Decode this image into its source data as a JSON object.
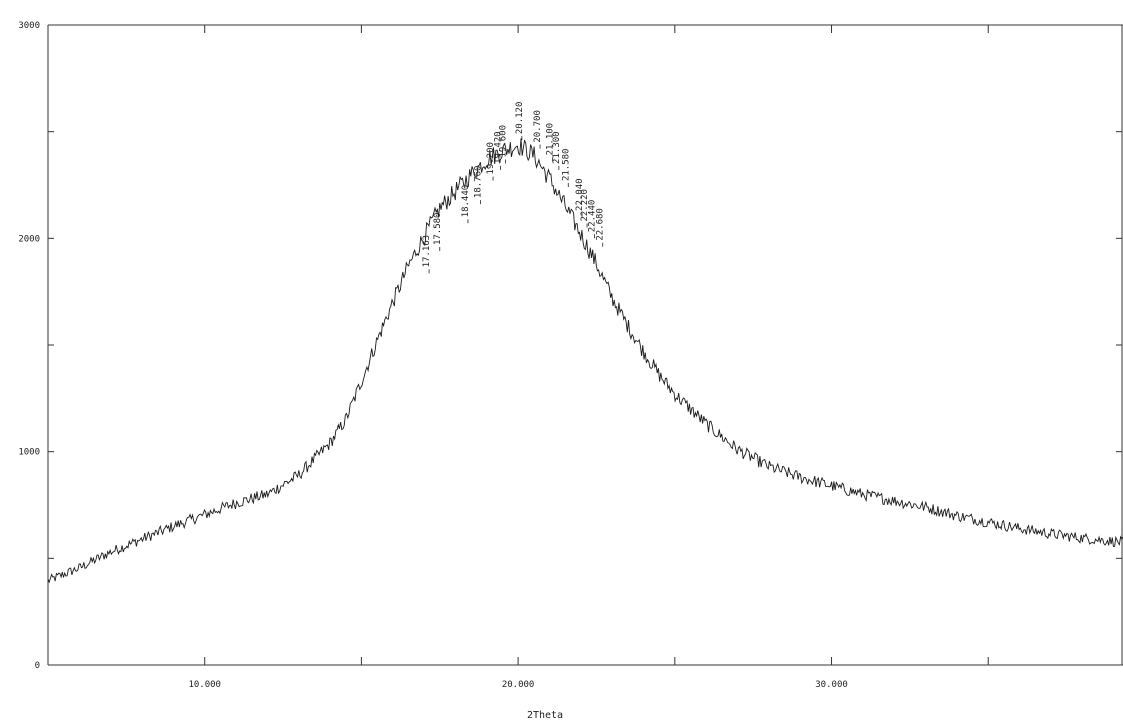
{
  "chart_data": {
    "type": "line",
    "title": "",
    "xlabel": "2Theta",
    "ylabel": "",
    "xlim": [
      5.0,
      39.3
    ],
    "ylim": [
      0,
      3000
    ],
    "grid": false,
    "legend": "none",
    "line_color": "#1a1a1a",
    "x_ticks": [
      10.0,
      15.0,
      20.0,
      25.0,
      30.0,
      35.0
    ],
    "x_tick_labels": [
      {
        "x": 10.0,
        "label": "10.000"
      },
      {
        "x": 20.0,
        "label": "20.000"
      },
      {
        "x": 30.0,
        "label": "30.000"
      }
    ],
    "y_ticks": [
      0,
      500,
      1000,
      1500,
      2000,
      2500,
      3000
    ],
    "y_tick_labels": [
      {
        "y": 0,
        "label": "0"
      },
      {
        "y": 1000,
        "label": "1000"
      },
      {
        "y": 2000,
        "label": "2000"
      },
      {
        "y": 3000,
        "label": "3000"
      }
    ],
    "series": [
      {
        "x": [
          5.0,
          6.0,
          7.0,
          8.0,
          9.0,
          10.0,
          11.0,
          12.0,
          13.0,
          14.0,
          14.5,
          15.0,
          15.5,
          16.0,
          16.5,
          17.0,
          17.5,
          18.0,
          18.5,
          19.0,
          19.5,
          20.0,
          20.5,
          21.0,
          21.5,
          22.0,
          22.5,
          23.0,
          23.5,
          24.0,
          24.5,
          25.0,
          26.0,
          27.0,
          28.0,
          29.0,
          30.0,
          31.0,
          32.0,
          33.0,
          34.0,
          35.0,
          36.0,
          37.0,
          38.0,
          39.3
        ],
        "y": [
          395,
          455,
          530,
          590,
          650,
          705,
          760,
          800,
          890,
          1040,
          1150,
          1330,
          1520,
          1700,
          1870,
          2010,
          2140,
          2220,
          2300,
          2370,
          2410,
          2440,
          2390,
          2280,
          2150,
          2020,
          1880,
          1720,
          1590,
          1470,
          1360,
          1270,
          1130,
          1010,
          930,
          880,
          840,
          800,
          770,
          740,
          700,
          670,
          640,
          615,
          595,
          575
        ]
      }
    ],
    "peak_labels": [
      {
        "x": 17.16,
        "y": 1845,
        "label": "17.163"
      },
      {
        "x": 17.5,
        "y": 1950,
        "label": "17.580"
      },
      {
        "x": 18.4,
        "y": 2080,
        "label": "18.440"
      },
      {
        "x": 18.8,
        "y": 2170,
        "label": "18.760"
      },
      {
        "x": 19.2,
        "y": 2280,
        "label": "19.200"
      },
      {
        "x": 19.44,
        "y": 2330,
        "label": "19.420"
      },
      {
        "x": 19.6,
        "y": 2360,
        "label": "19.600"
      },
      {
        "x": 20.12,
        "y": 2470,
        "label": "20.120"
      },
      {
        "x": 20.7,
        "y": 2430,
        "label": "20.700"
      },
      {
        "x": 21.1,
        "y": 2370,
        "label": "21.100"
      },
      {
        "x": 21.3,
        "y": 2330,
        "label": "21.300"
      },
      {
        "x": 21.6,
        "y": 2250,
        "label": "21.580"
      },
      {
        "x": 22.04,
        "y": 2110,
        "label": "22.040"
      },
      {
        "x": 22.2,
        "y": 2060,
        "label": "22.220"
      },
      {
        "x": 22.44,
        "y": 2010,
        "label": "22.440"
      },
      {
        "x": 22.7,
        "y": 1970,
        "label": "22.680"
      }
    ]
  }
}
